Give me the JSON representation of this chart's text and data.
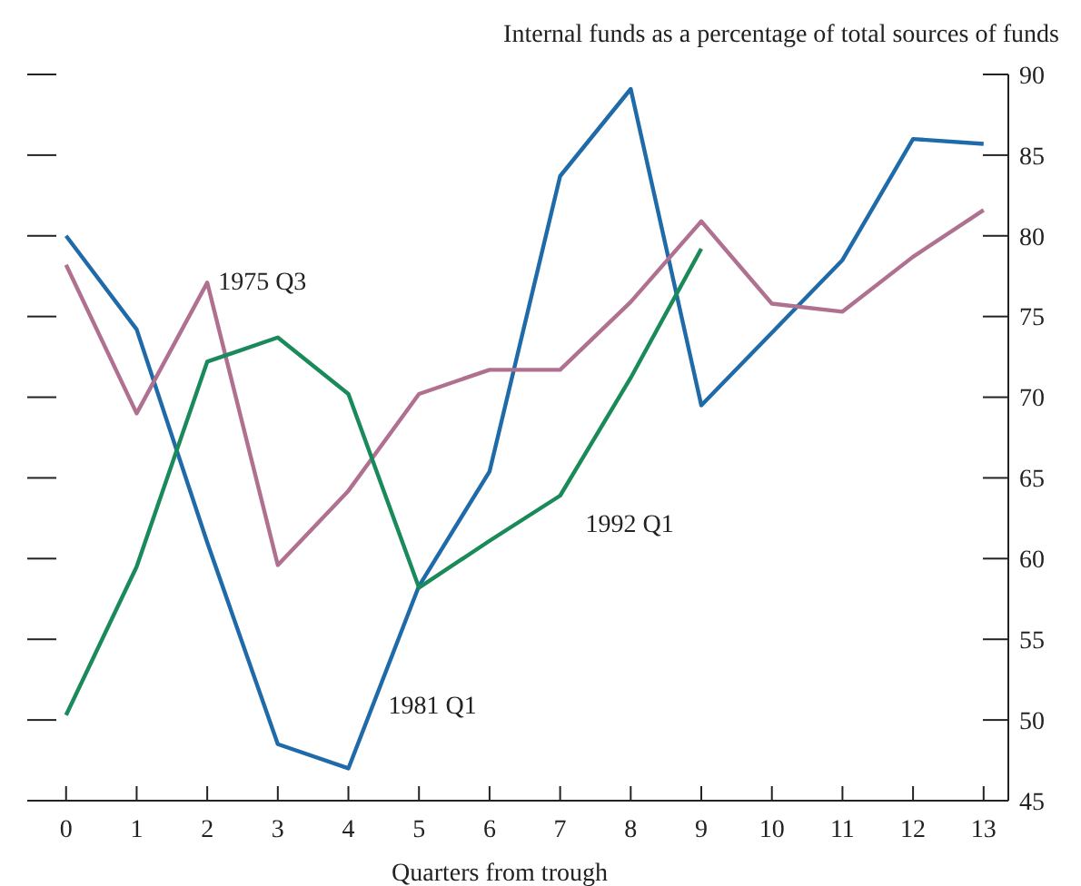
{
  "chart_data": {
    "type": "line",
    "ylabel": "Internal funds as a percentage of total sources of funds",
    "xlabel": "Quarters from trough",
    "x": [
      0,
      1,
      2,
      3,
      4,
      5,
      6,
      7,
      8,
      9,
      10,
      11,
      12,
      13
    ],
    "series": [
      {
        "name": "1981 Q1",
        "color": "#1f6aa8",
        "values": [
          80,
          74.2,
          61,
          48.5,
          47,
          58.3,
          65.4,
          83.7,
          89.1,
          69.5,
          74,
          78.5,
          86,
          85.7
        ]
      },
      {
        "name": "1975 Q3",
        "color": "#b0708f",
        "values": [
          78.2,
          69,
          77.1,
          59.6,
          64.2,
          70.2,
          71.7,
          71.7,
          75.9,
          80.9,
          75.8,
          75.3,
          78.7,
          81.6
        ]
      },
      {
        "name": "1992 Q1",
        "color": "#1a8a5a",
        "values": [
          50.3,
          59.5,
          72.2,
          73.7,
          70.2,
          58.2,
          61.1,
          63.9,
          71.2,
          79.2,
          null,
          null,
          null,
          null
        ]
      }
    ],
    "xlim": [
      -0.55,
      13.35
    ],
    "ylim": [
      45,
      90
    ],
    "xticks": [
      0,
      1,
      2,
      3,
      4,
      5,
      6,
      7,
      8,
      9,
      10,
      11,
      12,
      13
    ],
    "yticks": [
      45,
      50,
      55,
      60,
      65,
      70,
      75,
      80,
      85,
      90
    ],
    "grid": false,
    "marker": "none",
    "line_style": "solid"
  }
}
